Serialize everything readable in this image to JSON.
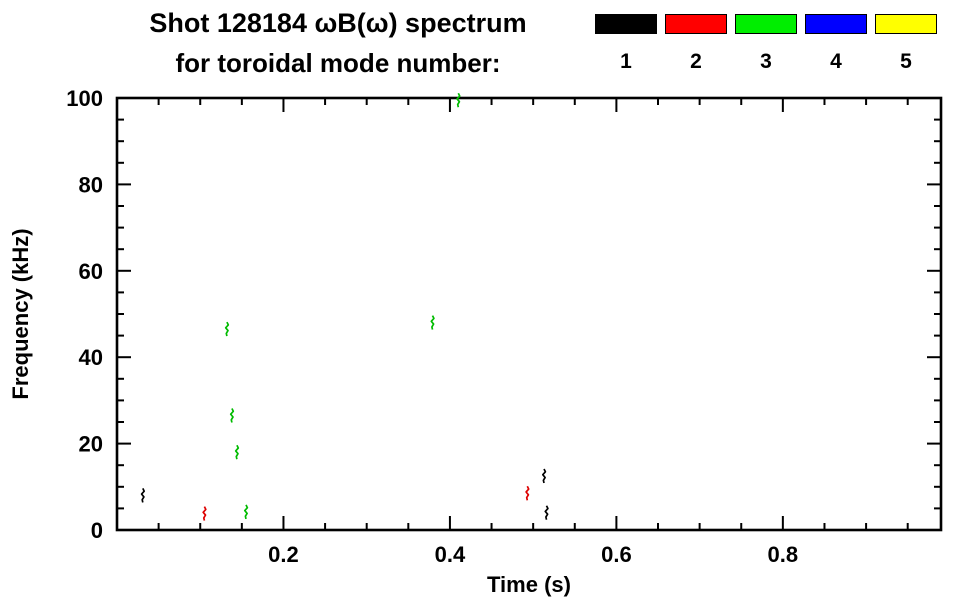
{
  "page": {
    "background": "#ffffff"
  },
  "chart_data": {
    "type": "scatter",
    "title": "Shot 128184 ωB(ω) spectrum",
    "subtitle": "for toroidal mode number:",
    "xlabel": "Time (s)",
    "ylabel": "Frequency (kHz)",
    "xlim": [
      0,
      0.99
    ],
    "ylim": [
      0,
      100
    ],
    "x_major_ticks": [
      0.2,
      0.4,
      0.6,
      0.8
    ],
    "x_major_tick_labels": [
      "0.2",
      "0.4",
      "0.6",
      "0.8"
    ],
    "x_minor_step": 0.05,
    "y_major_ticks": [
      0,
      20,
      40,
      60,
      80,
      100
    ],
    "y_major_tick_labels": [
      "0",
      "20",
      "40",
      "60",
      "80",
      "100"
    ],
    "y_minor_step": 5,
    "grid": false,
    "legend_position": "top-right",
    "legend": [
      {
        "mode": "1",
        "color": "#000000"
      },
      {
        "mode": "2",
        "color": "#ff0000"
      },
      {
        "mode": "3",
        "color": "#00ee00"
      },
      {
        "mode": "4",
        "color": "#0000ff"
      },
      {
        "mode": "5",
        "color": "#ffff00"
      }
    ],
    "series": [
      {
        "name": "n=1",
        "color": "#000000",
        "points": [
          [
            0.031,
            8.0
          ],
          [
            0.513,
            12.5
          ],
          [
            0.516,
            4.0
          ]
        ]
      },
      {
        "name": "n=2",
        "color": "#dd0000",
        "points": [
          [
            0.105,
            3.8
          ],
          [
            0.493,
            8.5
          ]
        ]
      },
      {
        "name": "n=3",
        "color": "#00bb00",
        "points": [
          [
            0.132,
            46.5
          ],
          [
            0.138,
            26.5
          ],
          [
            0.144,
            18.0
          ],
          [
            0.155,
            4.2
          ],
          [
            0.379,
            48.0
          ],
          [
            0.41,
            99.5
          ]
        ]
      },
      {
        "name": "n=4",
        "color": "#0000ff",
        "points": []
      },
      {
        "name": "n=5",
        "color": "#ffff00",
        "points": []
      }
    ]
  }
}
